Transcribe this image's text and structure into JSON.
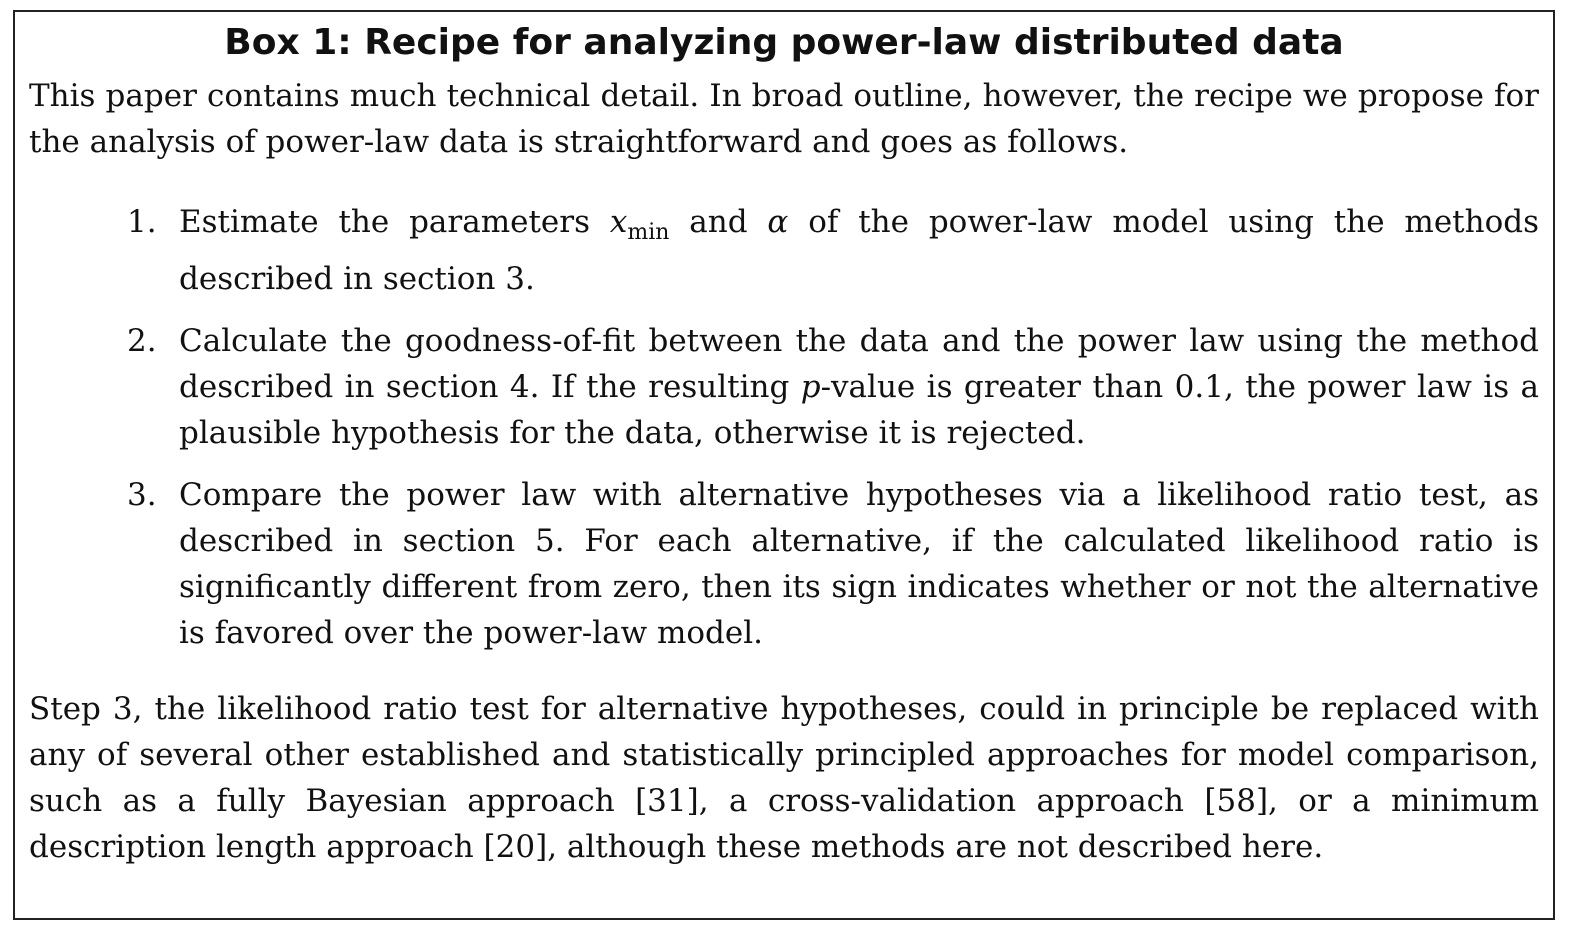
{
  "box": {
    "title": "Box 1: Recipe for analyzing power-law distributed data",
    "intro": "This paper contains much technical detail. In broad outline, however, the recipe we propose for the analysis of power-law data is straightforward and goes as follows.",
    "steps": [
      {
        "number": "1.",
        "parts": {
          "a": "Estimate the parameters ",
          "xmin_var": "x",
          "xmin_sub": "min",
          "b": " and ",
          "alpha": "α",
          "c": " of the power-law model using the methods described in section 3."
        }
      },
      {
        "number": "2.",
        "parts": {
          "a": "Calculate the goodness-of-fit between the data and the power law using the method described in section 4. If the resulting ",
          "p": "p",
          "b": "-value is greater than 0.1, the power law is a plausible hypothesis for the data, otherwise it is rejected."
        }
      },
      {
        "number": "3.",
        "text": "Compare the power law with alternative hypotheses via a likelihood ratio test, as described in section 5. For each alternative, if the calculated likelihood ratio is significantly different from zero, then its sign indicates whether or not the alternative is favored over the power-law model."
      }
    ],
    "closing": "Step 3, the likelihood ratio test for alternative hypotheses, could in principle be replaced with any of several other established and statistically principled approaches for model comparison, such as a fully Bayesian approach [31], a cross-validation approach [58], or a minimum description length approach [20], although these methods are not described here."
  }
}
